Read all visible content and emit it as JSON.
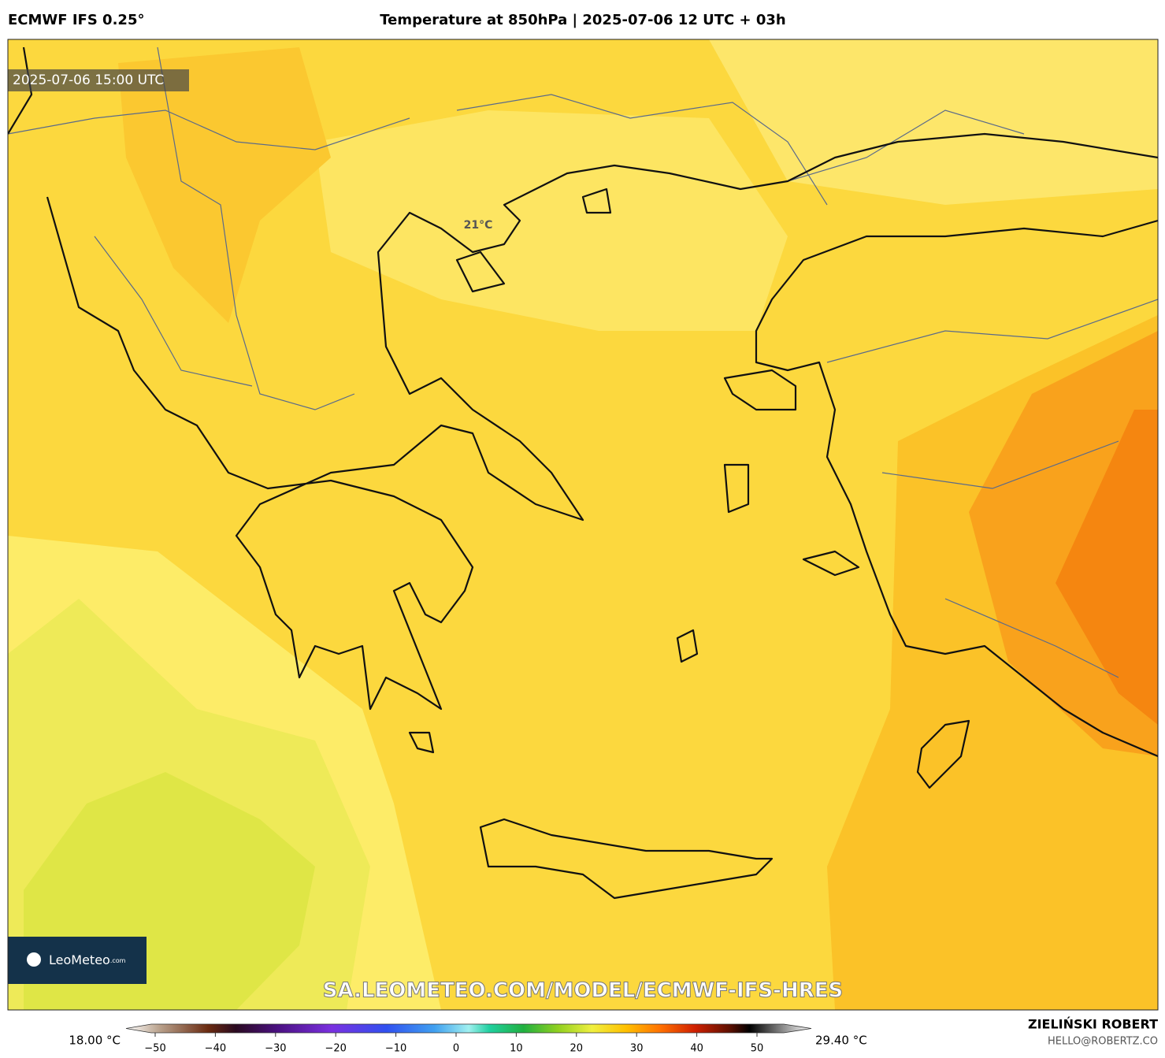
{
  "header": {
    "model": "ECMWF IFS 0.25°",
    "title": "Temperature at 850hPa | 2025-07-06 12 UTC + 03h"
  },
  "map": {
    "valid_time": "2025-07-06 15:00 UTC",
    "label": "21°C",
    "watermark": "SA.LEOMETEO.COM/MODEL/ECMWF-IFS-HRES",
    "logo": "LeoMeteo",
    "logo_suffix": ".com"
  },
  "colorbar": {
    "min_label": "18.00 °C",
    "max_label": "29.40 °C",
    "ticks": [
      {
        "value": -50,
        "label": "−50"
      },
      {
        "value": -40,
        "label": "−40"
      },
      {
        "value": -30,
        "label": "−30"
      },
      {
        "value": -20,
        "label": "−20"
      },
      {
        "value": -10,
        "label": "−10"
      },
      0,
      10,
      20,
      30,
      40,
      50
    ]
  },
  "footer": {
    "author": "ZIELIŃSKI ROBERT",
    "email": "HELLO@ROBERTZ.CO"
  }
}
